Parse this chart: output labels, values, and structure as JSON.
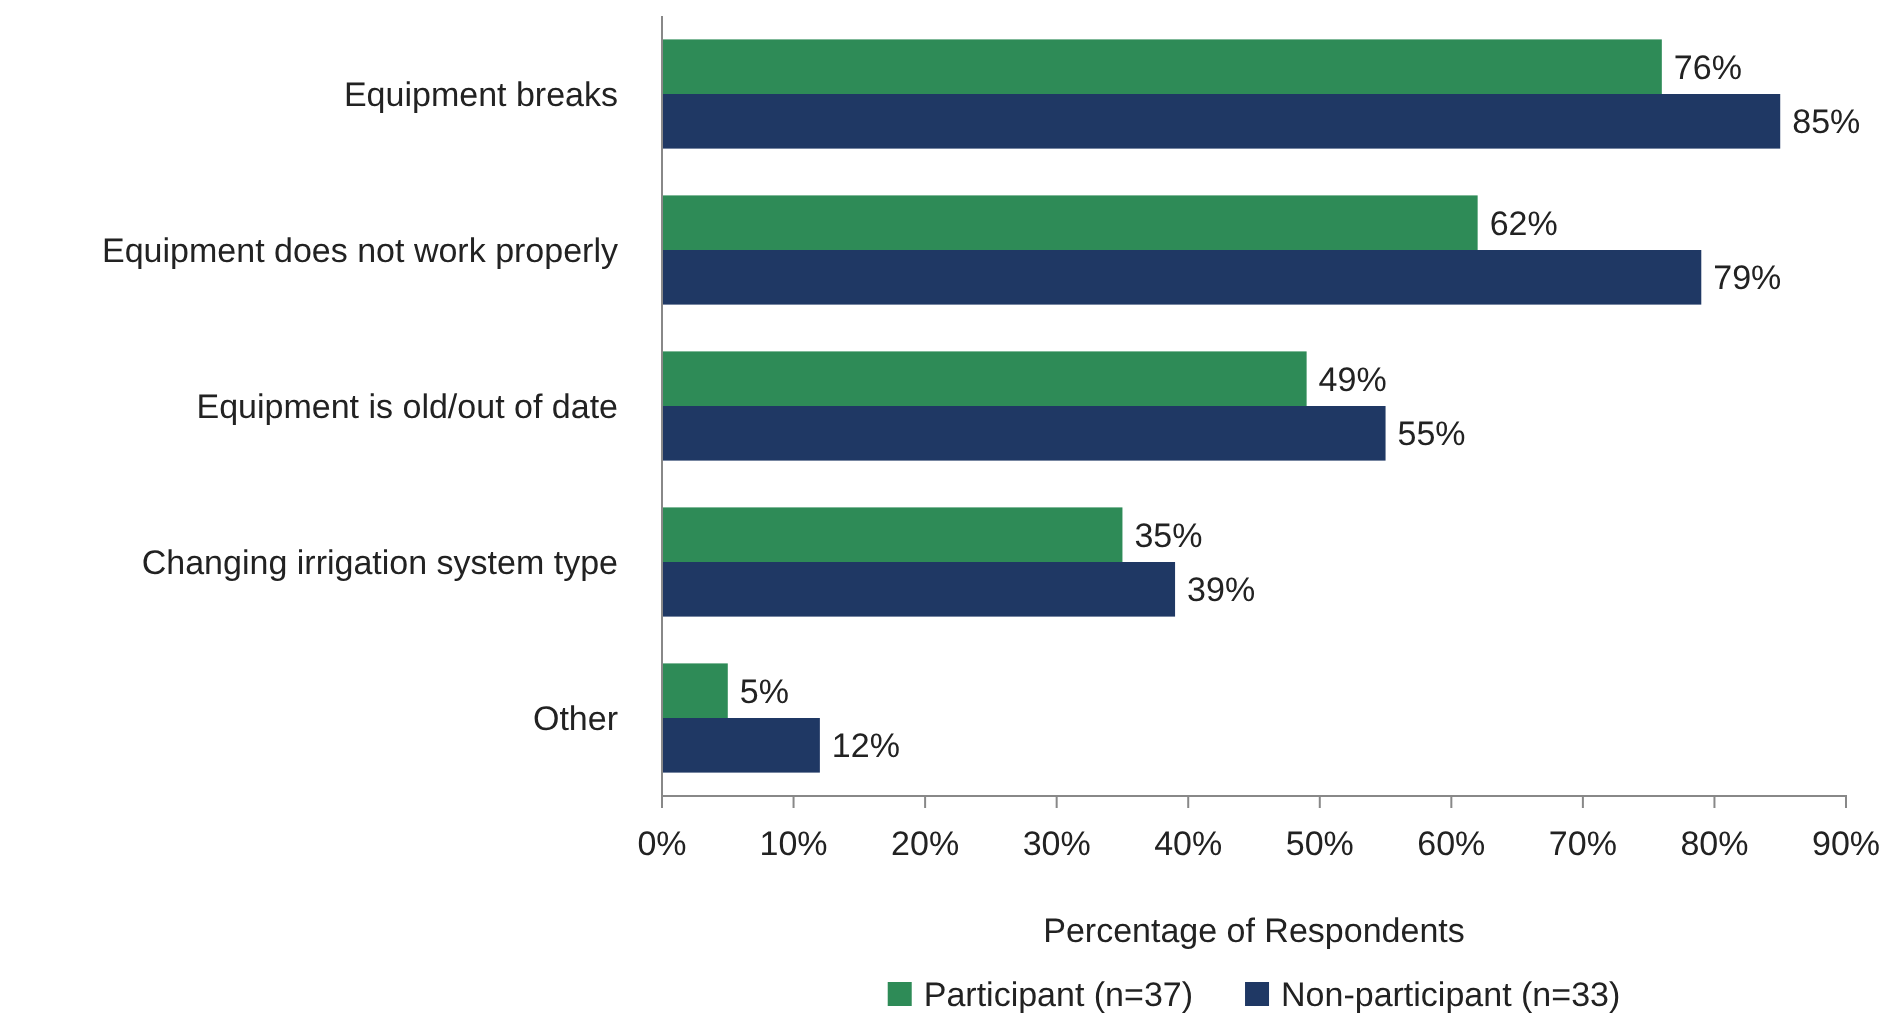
{
  "chart_data": {
    "type": "bar",
    "orientation": "horizontal",
    "xlabel": "Percentage of Respondents",
    "categories": [
      "Equipment breaks",
      "Equipment does not work properly",
      "Equipment is old/out of date",
      "Changing irrigation system type",
      "Other"
    ],
    "series": [
      {
        "name": "Participant (n=37)",
        "color": "#2e8b57",
        "values": [
          76,
          62,
          49,
          35,
          5
        ]
      },
      {
        "name": "Non-participant (n=33)",
        "color": "#1f3864",
        "values": [
          85,
          79,
          55,
          39,
          12
        ]
      }
    ],
    "xlim": [
      0,
      90
    ],
    "xticks": [
      {
        "value": 0,
        "label": "0%"
      },
      {
        "value": 10,
        "label": "10%"
      },
      {
        "value": 20,
        "label": "20%"
      },
      {
        "value": 30,
        "label": "30%"
      },
      {
        "value": 40,
        "label": "40%"
      },
      {
        "value": 50,
        "label": "50%"
      },
      {
        "value": 60,
        "label": "60%"
      },
      {
        "value": 70,
        "label": "70%"
      },
      {
        "value": 80,
        "label": "80%"
      },
      {
        "value": 90,
        "label": "90%"
      }
    ],
    "value_labels": [
      [
        "76%",
        "62%",
        "49%",
        "35%",
        "5%"
      ],
      [
        "85%",
        "79%",
        "55%",
        "39%",
        "12%"
      ]
    ],
    "grid": false,
    "legend": "bottom"
  }
}
